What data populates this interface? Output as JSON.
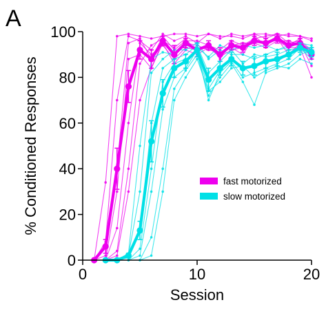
{
  "chart_data": {
    "type": "line",
    "panel_label": "A",
    "xlabel": "Session",
    "ylabel": "% Conditioned Responses",
    "xlim": [
      0,
      20
    ],
    "ylim": [
      0,
      100
    ],
    "xticks": [
      0,
      10,
      20
    ],
    "yticks": [
      0,
      20,
      40,
      60,
      80,
      100
    ],
    "grid": false,
    "legend_position": "center-right",
    "series": [
      {
        "name": "fast motorized",
        "color": "#ee00ee",
        "x": [
          1,
          2,
          3,
          4,
          5,
          6,
          7,
          8,
          9,
          10,
          11,
          12,
          13,
          14,
          15,
          16,
          17,
          18,
          19,
          20
        ],
        "mean": [
          0,
          6,
          40,
          76,
          92,
          88,
          96,
          90,
          95,
          92,
          94,
          90,
          94,
          93,
          96,
          95,
          97,
          94,
          95,
          90
        ],
        "error": [
          0,
          3,
          9,
          7,
          4,
          4,
          2,
          4,
          2,
          3,
          2,
          3,
          2,
          2,
          2,
          2,
          2,
          2,
          2,
          2
        ],
        "individuals": [
          [
            0,
            34,
            98,
            99,
            98,
            97,
            98,
            99,
            99,
            98,
            99,
            98,
            98,
            97,
            99,
            99,
            98,
            99,
            98,
            97
          ],
          [
            0,
            8,
            70,
            98,
            96,
            92,
            99,
            96,
            98,
            95,
            99,
            97,
            99,
            98,
            99,
            97,
            99,
            98,
            98,
            96
          ],
          [
            0,
            2,
            40,
            95,
            97,
            88,
            98,
            92,
            96,
            96,
            94,
            92,
            96,
            94,
            97,
            98,
            99,
            95,
            96,
            92
          ],
          [
            0,
            0,
            30,
            88,
            90,
            84,
            96,
            93,
            97,
            91,
            95,
            88,
            95,
            92,
            96,
            95,
            98,
            94,
            97,
            88
          ],
          [
            0,
            0,
            14,
            60,
            95,
            90,
            94,
            88,
            93,
            92,
            93,
            90,
            94,
            95,
            95,
            96,
            96,
            96,
            94,
            92
          ],
          [
            0,
            0,
            4,
            40,
            86,
            94,
            97,
            90,
            95,
            94,
            92,
            91,
            93,
            90,
            98,
            94,
            97,
            90,
            95,
            85
          ],
          [
            0,
            0,
            2,
            30,
            70,
            84,
            95,
            86,
            92,
            90,
            93,
            89,
            92,
            93,
            95,
            93,
            96,
            93,
            93,
            80
          ]
        ]
      },
      {
        "name": "slow motorized",
        "color": "#00e0e6",
        "x": [
          2,
          3,
          4,
          5,
          6,
          7,
          8,
          9,
          10,
          11,
          12,
          13,
          14,
          15,
          16,
          17,
          18,
          19,
          20
        ],
        "mean": [
          0,
          0,
          2,
          13,
          52,
          73,
          84,
          87,
          92,
          79,
          84,
          88,
          84,
          85,
          87,
          88,
          90,
          93,
          91
        ],
        "error": [
          0,
          0,
          1,
          4,
          9,
          6,
          4,
          3,
          3,
          5,
          3,
          3,
          3,
          4,
          3,
          3,
          2,
          2,
          2
        ],
        "individuals": [
          [
            0,
            0,
            3,
            50,
            88,
            91,
            90,
            94,
            93,
            89,
            94,
            92,
            94,
            93,
            94,
            92,
            93,
            95,
            92
          ],
          [
            0,
            0,
            2,
            30,
            82,
            88,
            92,
            92,
            95,
            88,
            92,
            90,
            90,
            88,
            90,
            92,
            94,
            95,
            94
          ],
          [
            0,
            0,
            1,
            12,
            60,
            84,
            88,
            90,
            94,
            82,
            87,
            92,
            86,
            90,
            89,
            90,
            92,
            93,
            93
          ],
          [
            0,
            0,
            0,
            5,
            40,
            78,
            86,
            88,
            91,
            75,
            83,
            88,
            84,
            85,
            88,
            87,
            90,
            92,
            90
          ],
          [
            0,
            0,
            0,
            2,
            30,
            66,
            80,
            84,
            92,
            70,
            82,
            87,
            80,
            82,
            84,
            86,
            88,
            93,
            88
          ],
          [
            0,
            0,
            0,
            0,
            10,
            40,
            75,
            83,
            90,
            72,
            80,
            86,
            78,
            68,
            82,
            84,
            86,
            90,
            92
          ],
          [
            0,
            0,
            0,
            0,
            2,
            30,
            70,
            80,
            88,
            74,
            78,
            84,
            85,
            80,
            83,
            85,
            84,
            88,
            86
          ]
        ]
      }
    ]
  }
}
